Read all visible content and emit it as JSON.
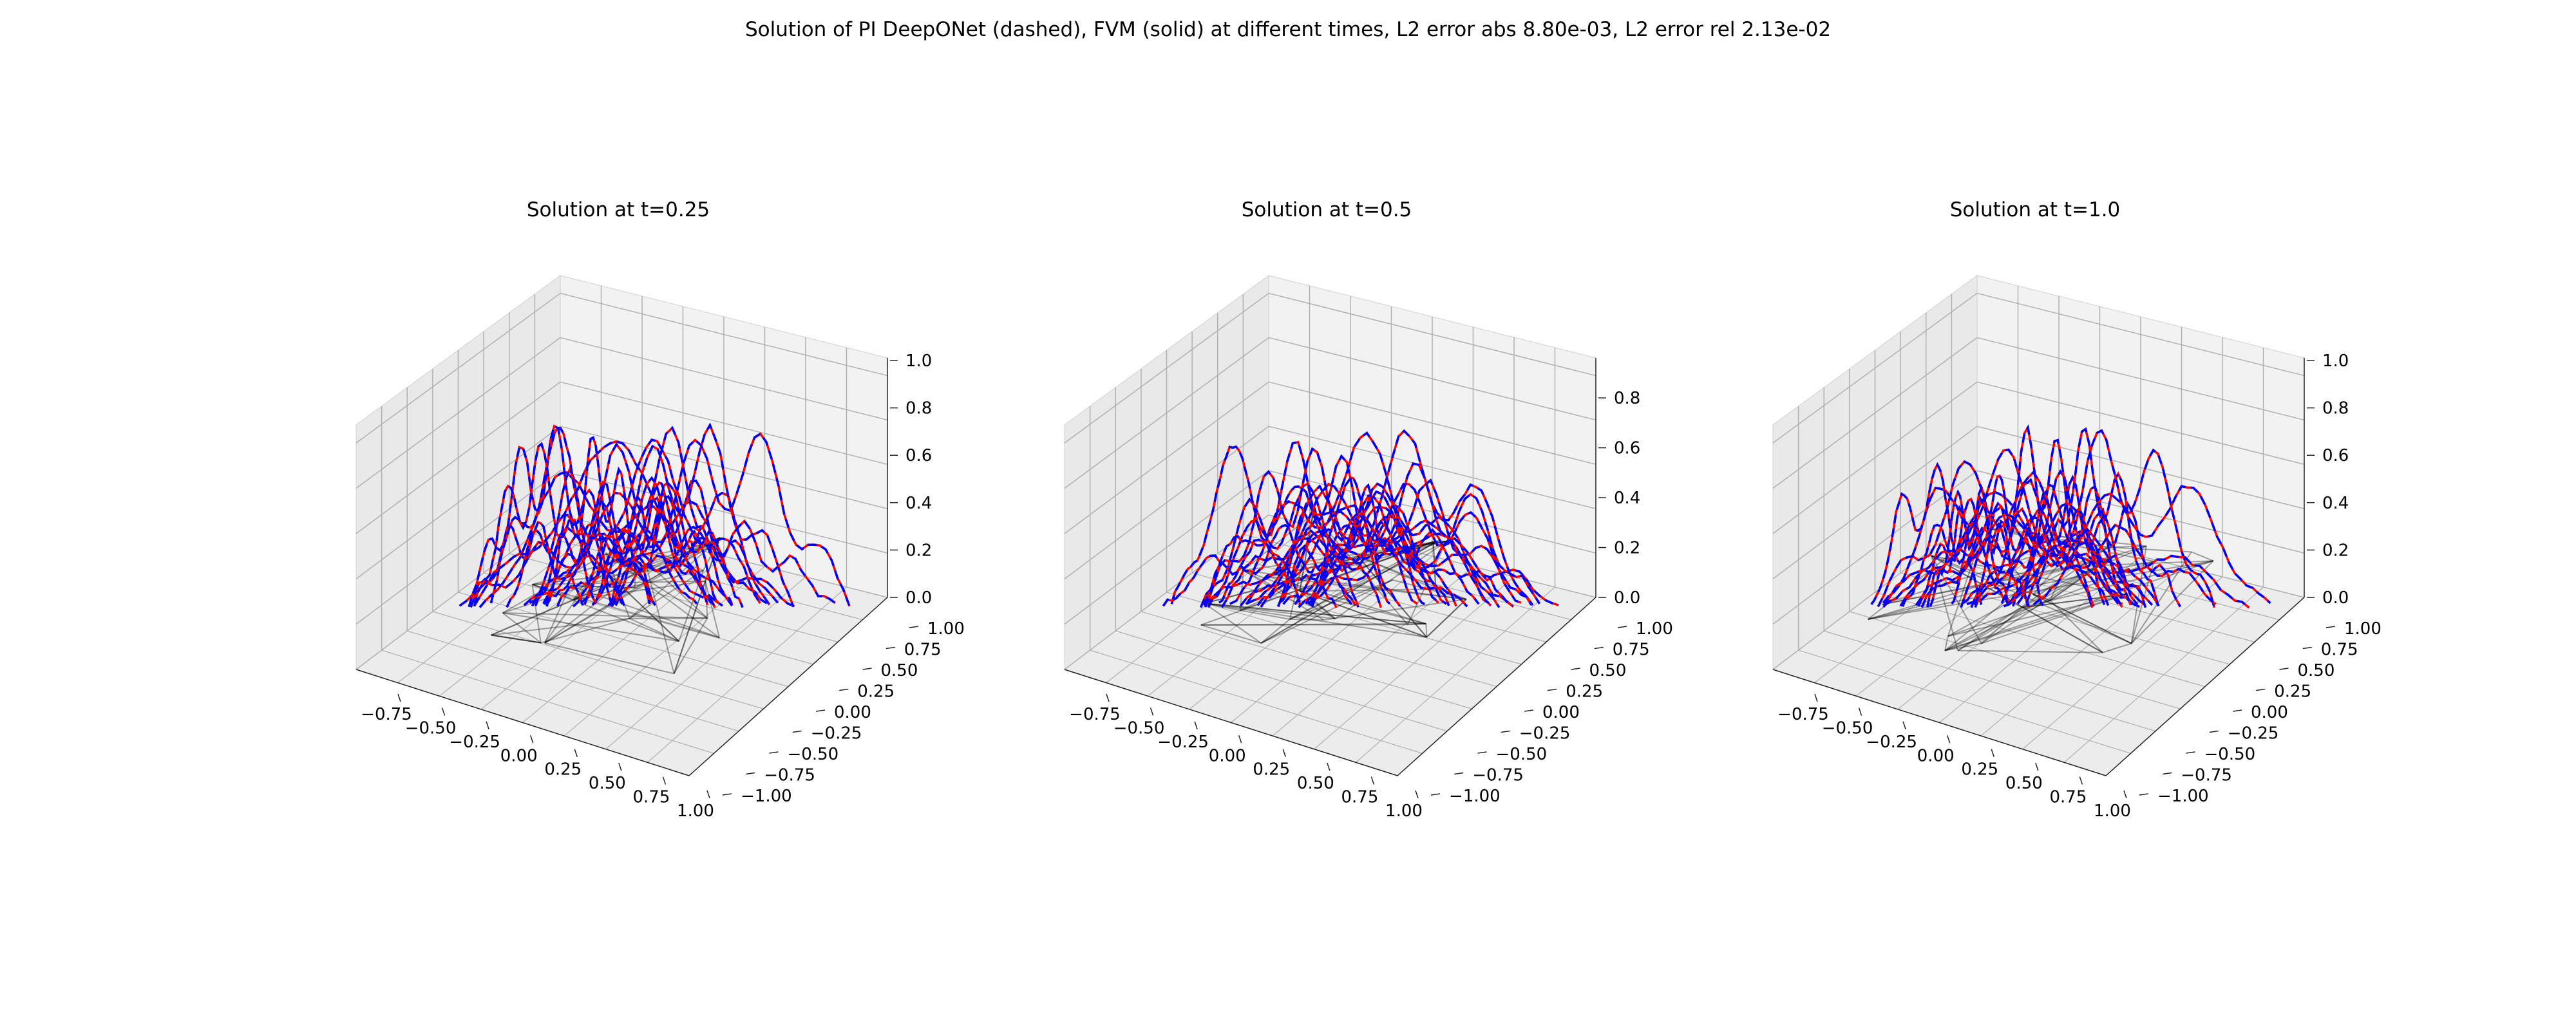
{
  "suptitle": "Solution of PI DeepONet (dashed), FVM (solid) at different times, L2 error abs 8.80e-03, L2 error rel 2.13e-02",
  "colors": {
    "fvm_solid": "#ff0000",
    "deeponet_dashed": "#0000ff",
    "mesh": "#000000",
    "pane": "#f2f2f2",
    "grid": "#b0b0b0"
  },
  "chart_data": [
    {
      "type": "line3d",
      "title": "Solution at t=0.25",
      "t": 0.25,
      "xticks": [
        "−0.75",
        "−0.50",
        "−0.25",
        "0.00",
        "0.25",
        "0.50",
        "0.75",
        "1.00"
      ],
      "yticks": [
        "−1.00",
        "−0.75",
        "−0.50",
        "−0.25",
        "0.00",
        "0.25",
        "0.50",
        "0.75",
        "1.00"
      ],
      "zticks": [
        "0.0",
        "0.2",
        "0.4",
        "0.6",
        "0.8",
        "1.0"
      ],
      "xlim": [
        -0.85,
        1.0
      ],
      "ylim": [
        -1.0,
        1.0
      ],
      "zlim": [
        0.0,
        1.0
      ],
      "series": [
        {
          "values_peak": 0.82
        },
        {
          "values_peak": 0.82
        }
      ]
    },
    {
      "type": "line3d",
      "title": "Solution at t=0.5",
      "t": 0.5,
      "xticks": [
        "−0.75",
        "−0.50",
        "−0.25",
        "0.00",
        "0.25",
        "0.50",
        "0.75",
        "1.00"
      ],
      "yticks": [
        "−1.00",
        "−0.75",
        "−0.50",
        "−0.25",
        "0.00",
        "0.25",
        "0.50",
        "0.75",
        "1.00"
      ],
      "zticks": [
        "0.0",
        "0.2",
        "0.4",
        "0.6",
        "0.8"
      ],
      "xlim": [
        -0.85,
        1.0
      ],
      "ylim": [
        -1.0,
        1.0
      ],
      "zlim": [
        0.0,
        0.95
      ],
      "series": [
        {
          "values_peak": 0.72
        },
        {
          "values_peak": 0.72
        }
      ]
    },
    {
      "type": "line3d",
      "title": "Solution at t=1.0",
      "t": 1.0,
      "xticks": [
        "−0.75",
        "−0.50",
        "−0.25",
        "0.00",
        "0.25",
        "0.50",
        "0.75",
        "1.00"
      ],
      "yticks": [
        "−1.00",
        "−0.75",
        "−0.50",
        "−0.25",
        "0.00",
        "0.25",
        "0.50",
        "0.75",
        "1.00"
      ],
      "zticks": [
        "0.0",
        "0.2",
        "0.4",
        "0.6",
        "0.8",
        "1.0"
      ],
      "xlim": [
        -0.85,
        1.0
      ],
      "ylim": [
        -1.0,
        1.0
      ],
      "zlim": [
        0.0,
        1.0
      ],
      "series": [
        {
          "values_peak": 0.8
        },
        {
          "values_peak": 0.8
        }
      ]
    }
  ]
}
